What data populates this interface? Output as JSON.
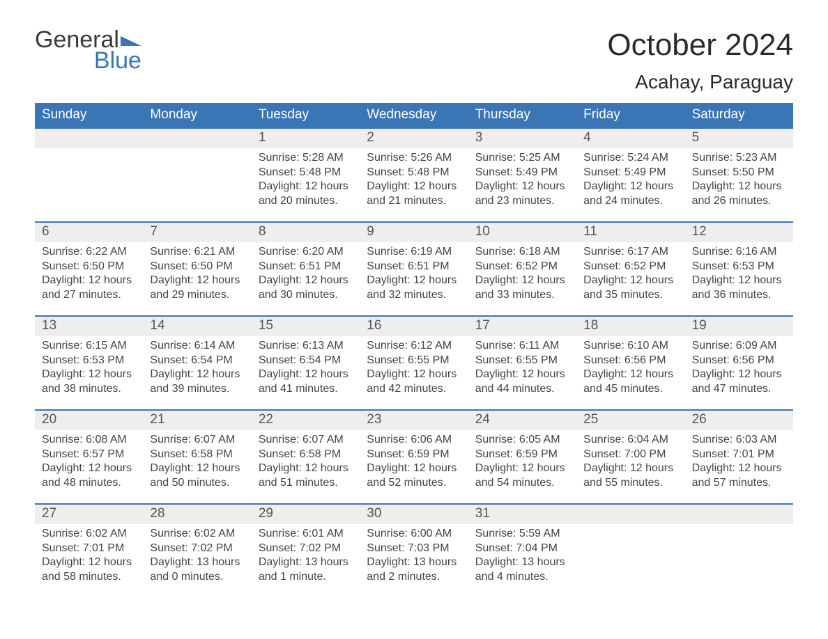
{
  "brand": {
    "word1": "General",
    "word2": "Blue",
    "logo_color": "#3a75b6"
  },
  "title": {
    "month_year": "October 2024",
    "location": "Acahay, Paraguay"
  },
  "colors": {
    "header_bg": "#3a75b6",
    "header_text": "#ffffff",
    "daynum_bg": "#eeeeee",
    "daynum_border": "#3a75b6",
    "body_text": "#444444",
    "background": "#ffffff"
  },
  "layout": {
    "columns": 7,
    "rows": 5,
    "cell_font_size": 16,
    "header_font_size": 19
  },
  "weekdays": [
    "Sunday",
    "Monday",
    "Tuesday",
    "Wednesday",
    "Thursday",
    "Friday",
    "Saturday"
  ],
  "weeks": [
    [
      {
        "day": "",
        "sunrise": "",
        "sunset": "",
        "daylight": ""
      },
      {
        "day": "",
        "sunrise": "",
        "sunset": "",
        "daylight": ""
      },
      {
        "day": "1",
        "sunrise": "Sunrise: 5:28 AM",
        "sunset": "Sunset: 5:48 PM",
        "daylight": "Daylight: 12 hours and 20 minutes."
      },
      {
        "day": "2",
        "sunrise": "Sunrise: 5:26 AM",
        "sunset": "Sunset: 5:48 PM",
        "daylight": "Daylight: 12 hours and 21 minutes."
      },
      {
        "day": "3",
        "sunrise": "Sunrise: 5:25 AM",
        "sunset": "Sunset: 5:49 PM",
        "daylight": "Daylight: 12 hours and 23 minutes."
      },
      {
        "day": "4",
        "sunrise": "Sunrise: 5:24 AM",
        "sunset": "Sunset: 5:49 PM",
        "daylight": "Daylight: 12 hours and 24 minutes."
      },
      {
        "day": "5",
        "sunrise": "Sunrise: 5:23 AM",
        "sunset": "Sunset: 5:50 PM",
        "daylight": "Daylight: 12 hours and 26 minutes."
      }
    ],
    [
      {
        "day": "6",
        "sunrise": "Sunrise: 6:22 AM",
        "sunset": "Sunset: 6:50 PM",
        "daylight": "Daylight: 12 hours and 27 minutes."
      },
      {
        "day": "7",
        "sunrise": "Sunrise: 6:21 AM",
        "sunset": "Sunset: 6:50 PM",
        "daylight": "Daylight: 12 hours and 29 minutes."
      },
      {
        "day": "8",
        "sunrise": "Sunrise: 6:20 AM",
        "sunset": "Sunset: 6:51 PM",
        "daylight": "Daylight: 12 hours and 30 minutes."
      },
      {
        "day": "9",
        "sunrise": "Sunrise: 6:19 AM",
        "sunset": "Sunset: 6:51 PM",
        "daylight": "Daylight: 12 hours and 32 minutes."
      },
      {
        "day": "10",
        "sunrise": "Sunrise: 6:18 AM",
        "sunset": "Sunset: 6:52 PM",
        "daylight": "Daylight: 12 hours and 33 minutes."
      },
      {
        "day": "11",
        "sunrise": "Sunrise: 6:17 AM",
        "sunset": "Sunset: 6:52 PM",
        "daylight": "Daylight: 12 hours and 35 minutes."
      },
      {
        "day": "12",
        "sunrise": "Sunrise: 6:16 AM",
        "sunset": "Sunset: 6:53 PM",
        "daylight": "Daylight: 12 hours and 36 minutes."
      }
    ],
    [
      {
        "day": "13",
        "sunrise": "Sunrise: 6:15 AM",
        "sunset": "Sunset: 6:53 PM",
        "daylight": "Daylight: 12 hours and 38 minutes."
      },
      {
        "day": "14",
        "sunrise": "Sunrise: 6:14 AM",
        "sunset": "Sunset: 6:54 PM",
        "daylight": "Daylight: 12 hours and 39 minutes."
      },
      {
        "day": "15",
        "sunrise": "Sunrise: 6:13 AM",
        "sunset": "Sunset: 6:54 PM",
        "daylight": "Daylight: 12 hours and 41 minutes."
      },
      {
        "day": "16",
        "sunrise": "Sunrise: 6:12 AM",
        "sunset": "Sunset: 6:55 PM",
        "daylight": "Daylight: 12 hours and 42 minutes."
      },
      {
        "day": "17",
        "sunrise": "Sunrise: 6:11 AM",
        "sunset": "Sunset: 6:55 PM",
        "daylight": "Daylight: 12 hours and 44 minutes."
      },
      {
        "day": "18",
        "sunrise": "Sunrise: 6:10 AM",
        "sunset": "Sunset: 6:56 PM",
        "daylight": "Daylight: 12 hours and 45 minutes."
      },
      {
        "day": "19",
        "sunrise": "Sunrise: 6:09 AM",
        "sunset": "Sunset: 6:56 PM",
        "daylight": "Daylight: 12 hours and 47 minutes."
      }
    ],
    [
      {
        "day": "20",
        "sunrise": "Sunrise: 6:08 AM",
        "sunset": "Sunset: 6:57 PM",
        "daylight": "Daylight: 12 hours and 48 minutes."
      },
      {
        "day": "21",
        "sunrise": "Sunrise: 6:07 AM",
        "sunset": "Sunset: 6:58 PM",
        "daylight": "Daylight: 12 hours and 50 minutes."
      },
      {
        "day": "22",
        "sunrise": "Sunrise: 6:07 AM",
        "sunset": "Sunset: 6:58 PM",
        "daylight": "Daylight: 12 hours and 51 minutes."
      },
      {
        "day": "23",
        "sunrise": "Sunrise: 6:06 AM",
        "sunset": "Sunset: 6:59 PM",
        "daylight": "Daylight: 12 hours and 52 minutes."
      },
      {
        "day": "24",
        "sunrise": "Sunrise: 6:05 AM",
        "sunset": "Sunset: 6:59 PM",
        "daylight": "Daylight: 12 hours and 54 minutes."
      },
      {
        "day": "25",
        "sunrise": "Sunrise: 6:04 AM",
        "sunset": "Sunset: 7:00 PM",
        "daylight": "Daylight: 12 hours and 55 minutes."
      },
      {
        "day": "26",
        "sunrise": "Sunrise: 6:03 AM",
        "sunset": "Sunset: 7:01 PM",
        "daylight": "Daylight: 12 hours and 57 minutes."
      }
    ],
    [
      {
        "day": "27",
        "sunrise": "Sunrise: 6:02 AM",
        "sunset": "Sunset: 7:01 PM",
        "daylight": "Daylight: 12 hours and 58 minutes."
      },
      {
        "day": "28",
        "sunrise": "Sunrise: 6:02 AM",
        "sunset": "Sunset: 7:02 PM",
        "daylight": "Daylight: 13 hours and 0 minutes."
      },
      {
        "day": "29",
        "sunrise": "Sunrise: 6:01 AM",
        "sunset": "Sunset: 7:02 PM",
        "daylight": "Daylight: 13 hours and 1 minute."
      },
      {
        "day": "30",
        "sunrise": "Sunrise: 6:00 AM",
        "sunset": "Sunset: 7:03 PM",
        "daylight": "Daylight: 13 hours and 2 minutes."
      },
      {
        "day": "31",
        "sunrise": "Sunrise: 5:59 AM",
        "sunset": "Sunset: 7:04 PM",
        "daylight": "Daylight: 13 hours and 4 minutes."
      },
      {
        "day": "",
        "sunrise": "",
        "sunset": "",
        "daylight": ""
      },
      {
        "day": "",
        "sunrise": "",
        "sunset": "",
        "daylight": ""
      }
    ]
  ]
}
